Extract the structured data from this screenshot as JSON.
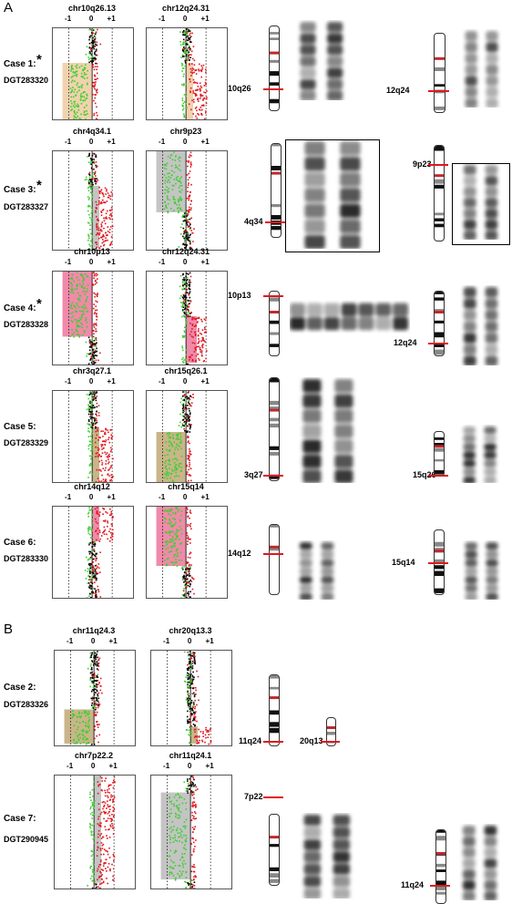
{
  "panels": [
    {
      "letter": "A"
    },
    {
      "letter": "B"
    }
  ],
  "cases": [
    {
      "label": "Case 1:",
      "starred": true,
      "id": "DGT283320",
      "plots": [
        {
          "title": "chr10q26.13"
        },
        {
          "title": "chr12q24.31"
        }
      ],
      "bands": [
        "10q26",
        "12q24"
      ]
    },
    {
      "label": "Case 3:",
      "starred": true,
      "id": "DGT283327",
      "plots": [
        {
          "title": "chr4q34.1"
        },
        {
          "title": "chr9p23"
        }
      ],
      "bands": [
        "4q34",
        "9p23"
      ]
    },
    {
      "label": "Case 4:",
      "starred": true,
      "id": "DGT283328",
      "plots": [
        {
          "title": "chr10p13"
        },
        {
          "title": "chr12q24.31"
        }
      ],
      "bands": [
        "10p13",
        "12q24"
      ]
    },
    {
      "label": "Case 5:",
      "starred": false,
      "id": "DGT283329",
      "plots": [
        {
          "title": "chr3q27.1"
        },
        {
          "title": "chr15q26.1"
        }
      ],
      "bands": [
        "3q27",
        "15q26"
      ]
    },
    {
      "label": "Case 6:",
      "starred": false,
      "id": "DGT283330",
      "plots": [
        {
          "title": "chr14q12"
        },
        {
          "title": "chr15q14"
        }
      ],
      "bands": [
        "14q12",
        "15q14"
      ]
    },
    {
      "label": "Case 2:",
      "starred": false,
      "id": "DGT283326",
      "plots": [
        {
          "title": "chr11q24.3"
        },
        {
          "title": "chr20q13.3"
        }
      ],
      "bands": [
        "11q24",
        "20q13"
      ]
    },
    {
      "label": "Case 7:",
      "starred": false,
      "id": "DGT290945",
      "plots": [
        {
          "title": "chr7p22.2"
        },
        {
          "title": "chr11q24.1"
        }
      ],
      "bands": [
        "7p22",
        "11q24"
      ]
    }
  ],
  "axis_ticks": [
    "-1",
    "0",
    "+1"
  ],
  "star": "*",
  "colors": {
    "gain_points": "#e0171e",
    "loss_points": "#3fcf2f",
    "normal_points": "#000000",
    "shade_tan": "#f1d2ae",
    "shade_gray": "#c4c4c4",
    "shade_pink": "#f08aaa",
    "shade_olive": "#c9b58a",
    "break_line": "#e0171e"
  }
}
